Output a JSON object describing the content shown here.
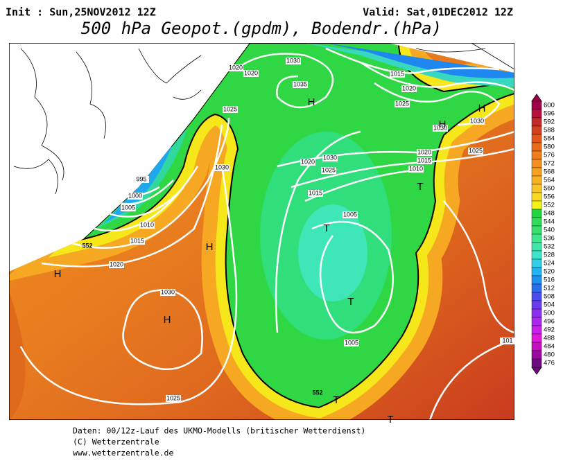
{
  "header": {
    "init": "Init : Sun,25NOV2012 12Z",
    "valid": "Valid: Sat,01DEC2012 12Z",
    "title": "500 hPa Geopot.(gpdm), Bodendr.(hPa)"
  },
  "map": {
    "isobar_labels": [
      "1020",
      "1020",
      "1030",
      "1035",
      "1015",
      "1020",
      "1025",
      "1025",
      "1030",
      "1030",
      "1025",
      "1020",
      "1015",
      "1010",
      "1030",
      "1020",
      "1025",
      "1015",
      "1005",
      "1030",
      "995",
      "1000",
      "1005",
      "1010",
      "1015",
      "1020",
      "1030",
      "1025",
      "1005",
      "101"
    ],
    "contour_labels": [
      "552",
      "552"
    ],
    "pressure_centers": [
      "H",
      "H",
      "H",
      "H",
      "H",
      "H",
      "T",
      "T",
      "T",
      "T",
      "T"
    ]
  },
  "colorbar": {
    "ticks": [
      600,
      596,
      592,
      588,
      584,
      580,
      576,
      572,
      568,
      564,
      560,
      556,
      552,
      548,
      544,
      540,
      536,
      532,
      528,
      524,
      520,
      516,
      512,
      508,
      504,
      500,
      496,
      492,
      488,
      484,
      480,
      476
    ]
  },
  "footer": {
    "lines": [
      "Daten: 00/12z-Lauf des UKMO-Modells (britischer Wetterdienst)",
      "(C) Wetterzentrale",
      "www.wetterzentrale.de"
    ]
  }
}
